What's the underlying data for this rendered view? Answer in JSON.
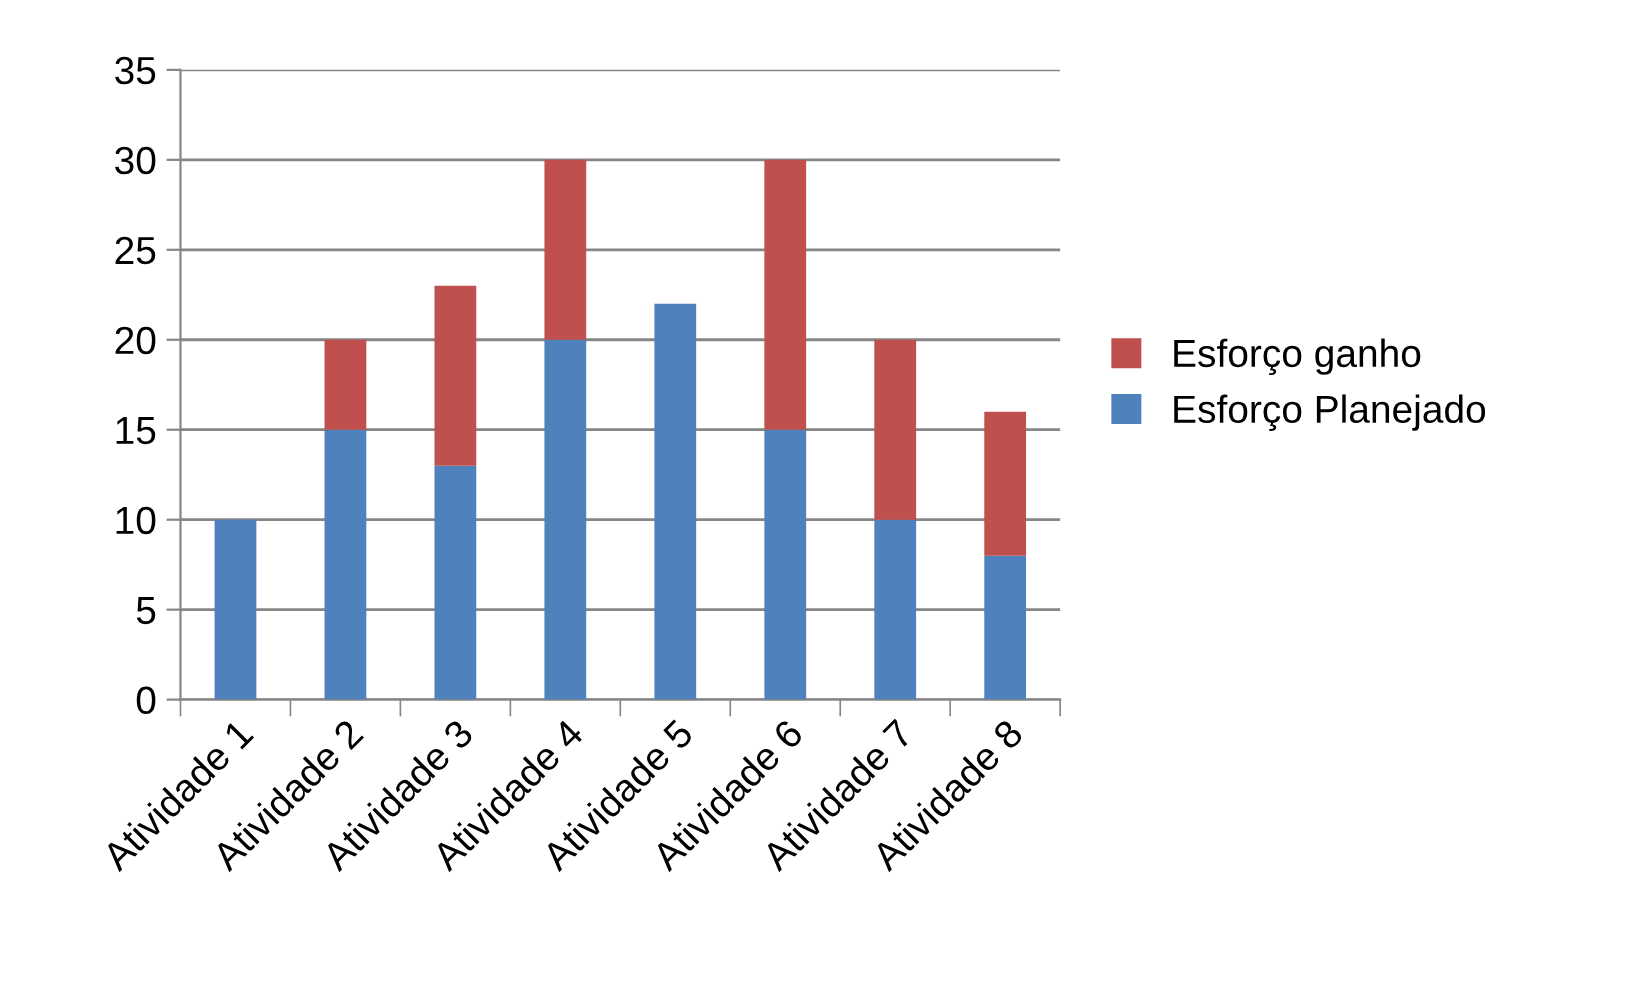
{
  "chart_data": {
    "type": "bar",
    "stacked": true,
    "categories": [
      "Atividade 1",
      "Atividade 2",
      "Atividade 3",
      "Atividade 4",
      "Atividade 5",
      "Atividade 6",
      "Atividade 7",
      "Atividade 8"
    ],
    "series": [
      {
        "name": "Esforço Planejado",
        "color": "#4f81bd",
        "values": [
          10,
          15,
          13,
          20,
          22,
          15,
          10,
          8
        ]
      },
      {
        "name": "Esforço ganho",
        "color": "#c0504d",
        "values": [
          null,
          5,
          10,
          10,
          null,
          15,
          10,
          8
        ]
      }
    ],
    "ylim": [
      0,
      35
    ],
    "yticks": [
      0,
      5,
      10,
      15,
      20,
      25,
      30,
      35
    ],
    "grid": "y",
    "legend": "right"
  }
}
